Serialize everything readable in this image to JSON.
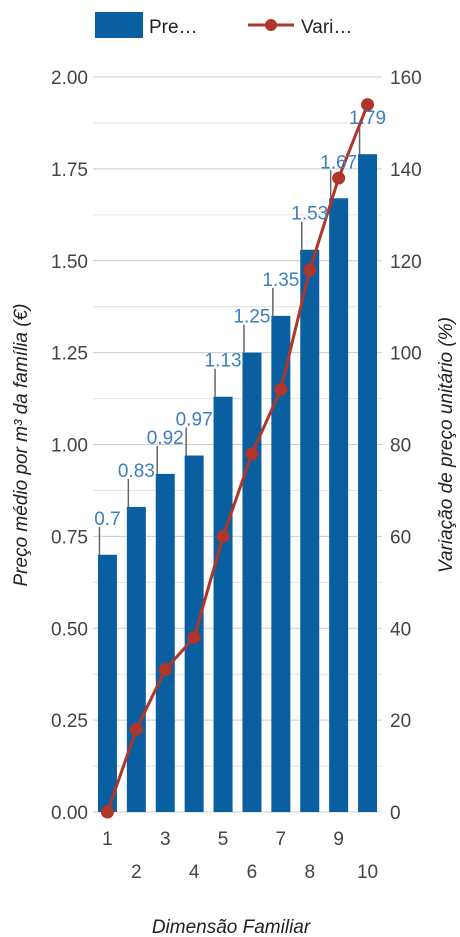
{
  "chart_data": {
    "type": "bar",
    "categories": [
      "1",
      "2",
      "3",
      "4",
      "5",
      "6",
      "7",
      "8",
      "9",
      "10"
    ],
    "series": [
      {
        "name": "Pre…",
        "type": "bar",
        "axis": "left",
        "color": "#0a5fa0",
        "values": [
          0.7,
          0.83,
          0.92,
          0.97,
          1.13,
          1.25,
          1.35,
          1.53,
          1.67,
          1.79
        ],
        "labels": [
          "0.7",
          "0.83",
          "0.92",
          "0.97",
          "1.13",
          "1.25",
          "1.35",
          "1.53",
          "1.67",
          "1.79"
        ]
      },
      {
        "name": "Vari…",
        "type": "line",
        "axis": "right",
        "color": "#b0352a",
        "values": [
          0,
          18,
          31,
          38,
          60,
          78,
          92,
          118,
          138,
          154
        ]
      }
    ],
    "xlabel": "Dimensão Familiar",
    "ylabel": "Preço médio por m³ da família (€)",
    "y2label": "Variação de preço unitário (%)",
    "ylim": [
      0,
      2
    ],
    "y2lim": [
      0,
      160
    ],
    "yticks": [
      "0.00",
      "0.25",
      "0.50",
      "0.75",
      "1.00",
      "1.25",
      "1.50",
      "1.75",
      "2.00"
    ],
    "y2ticks": [
      "0",
      "20",
      "40",
      "60",
      "80",
      "100",
      "120",
      "140",
      "160"
    ],
    "grid": true,
    "legend": "top-left"
  }
}
